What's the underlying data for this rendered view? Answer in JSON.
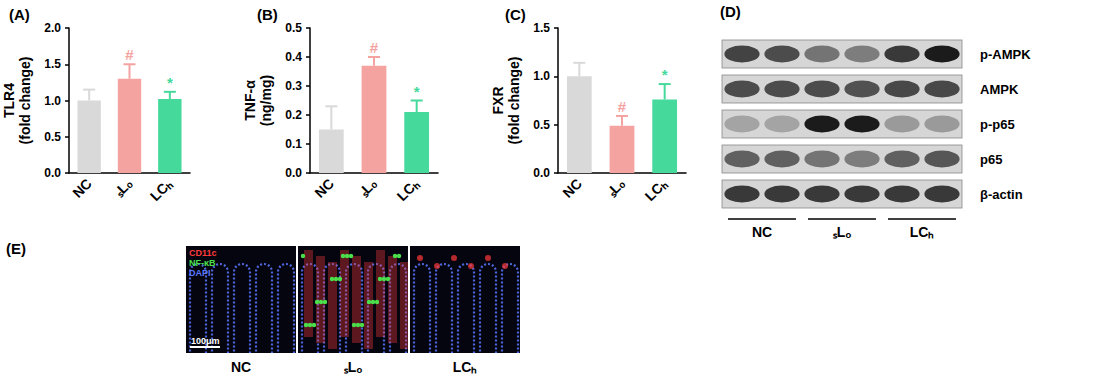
{
  "chart_data": [
    {
      "type": "bar",
      "title": "(A)",
      "y_label": "TLR4\n(fold change)",
      "categories": [
        "NC",
        "ₛLₒ",
        "LCₕ"
      ],
      "colors": [
        "#d9d9d9",
        "#f5a3a0",
        "#45d99b"
      ],
      "values": [
        1.0,
        1.3,
        1.02
      ],
      "errors": [
        0.15,
        0.2,
        0.1
      ],
      "annotations": [
        null,
        "#",
        "*"
      ],
      "ylim": [
        0,
        2
      ],
      "yticks": [
        {
          "value": 0,
          "label": "0.0"
        },
        {
          "value": 0.5,
          "label": "0.5"
        },
        {
          "value": 1,
          "label": "1.0"
        },
        {
          "value": 1.5,
          "label": "1.5"
        },
        {
          "value": 2,
          "label": "2.0"
        }
      ],
      "grid": false
    },
    {
      "type": "bar",
      "title": "(B)",
      "y_label": "TNF-α\n(ng/mg)",
      "categories": [
        "NC",
        "ₛLₒ",
        "LCₕ"
      ],
      "colors": [
        "#d9d9d9",
        "#f5a3a0",
        "#45d99b"
      ],
      "values": [
        0.15,
        0.37,
        0.21
      ],
      "errors": [
        0.08,
        0.03,
        0.04
      ],
      "annotations": [
        null,
        "#",
        "*"
      ],
      "ylim": [
        0,
        0.5
      ],
      "yticks": [
        {
          "value": 0,
          "label": "0.0"
        },
        0.1,
        0.2,
        0.3,
        0.4,
        0.5
      ],
      "grid": false
    },
    {
      "type": "bar",
      "title": "(C)",
      "y_label": "FXR\n(fold change)",
      "categories": [
        "NC",
        "ₛLₒ",
        "LCₕ"
      ],
      "colors": [
        "#d9d9d9",
        "#f5a3a0",
        "#45d99b"
      ],
      "values": [
        1.0,
        0.49,
        0.76
      ],
      "errors": [
        0.14,
        0.1,
        0.16
      ],
      "annotations": [
        null,
        "#",
        "*"
      ],
      "ylim": [
        0,
        1.5
      ],
      "yticks": [
        {
          "value": 0,
          "label": "0.0"
        },
        0.5,
        {
          "value": 1,
          "label": "1.0"
        },
        1.5
      ],
      "grid": false
    }
  ],
  "blot": {
    "title": "(D)",
    "groups": [
      "NC",
      "ₛLₒ",
      "LCₕ"
    ],
    "rows": [
      {
        "label": "p-AMPK",
        "intensity": [
          0.75,
          0.7,
          0.5,
          0.45,
          0.8,
          0.95
        ]
      },
      {
        "label": "AMPK",
        "intensity": [
          0.7,
          0.7,
          0.7,
          0.68,
          0.72,
          0.72
        ]
      },
      {
        "label": "p-p65",
        "intensity": [
          0.25,
          0.25,
          0.95,
          0.95,
          0.3,
          0.3
        ]
      },
      {
        "label": "p65",
        "intensity": [
          0.6,
          0.6,
          0.5,
          0.45,
          0.6,
          0.65
        ]
      },
      {
        "label": "β-actin",
        "intensity": [
          0.8,
          0.8,
          0.8,
          0.8,
          0.8,
          0.8
        ]
      }
    ]
  },
  "micrograph": {
    "title": "(E)",
    "channels": [
      {
        "text": "CD11c",
        "color": "#ff3b3b"
      },
      {
        "text": "NF-κB",
        "color": "#4be04b"
      },
      {
        "text": "DAPI",
        "color": "#5a78ff"
      }
    ],
    "scale_bar": "100μm",
    "panels": [
      "NC",
      "ₛLₒ",
      "LCₕ"
    ]
  }
}
